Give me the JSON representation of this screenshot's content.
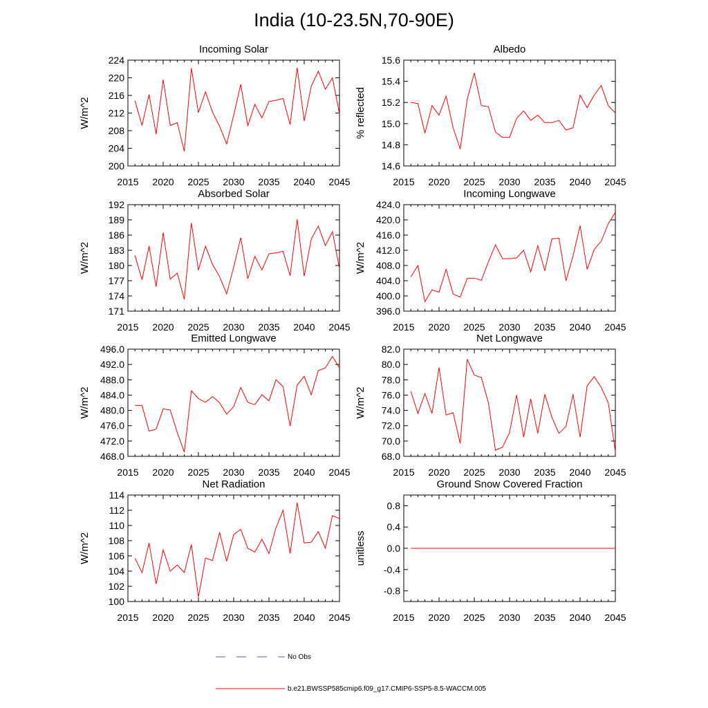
{
  "figure": {
    "title": "India (10-23.5N,70-90E)",
    "legend": [
      {
        "label": "No Obs",
        "style": "dashed",
        "color": "#5a5ab4"
      },
      {
        "label": "b.e21.BWSSP585cmip6.f09_g17.CMIP6-SSP5-8.5-WACCM.005",
        "style": "solid",
        "color": "#ff0000"
      }
    ]
  },
  "chart_data": [
    {
      "type": "line",
      "title": "Incoming Solar",
      "xlabel": "",
      "ylabel": "W/m^2",
      "xlim": [
        2015,
        2045
      ],
      "ylim": [
        200,
        224
      ],
      "xticks": [
        "2015",
        "2020",
        "2025",
        "2030",
        "2035",
        "2040",
        "2045"
      ],
      "yticks": [
        "200",
        "204",
        "208",
        "212",
        "216",
        "220",
        "224"
      ],
      "series": [
        {
          "name": "b.e21.BWSSP585cmip6.f09_g17.CMIP6-SSP5-8.5-WACCM.005",
          "color": "#ff0000",
          "x": [
            2016,
            2017,
            2018,
            2019,
            2020,
            2021,
            2022,
            2023,
            2024,
            2025,
            2026,
            2027,
            2028,
            2029,
            2030,
            2031,
            2032,
            2033,
            2034,
            2035,
            2036,
            2037,
            2038,
            2039,
            2040,
            2041,
            2042,
            2043,
            2044,
            2045
          ],
          "y": [
            214.8,
            209.2,
            216.2,
            207.2,
            219.6,
            209.2,
            209.8,
            203.3,
            222.2,
            212.1,
            216.8,
            212.2,
            209.0,
            205.0,
            211.5,
            218.5,
            209.1,
            214.0,
            210.9,
            214.6,
            214.9,
            215.3,
            209.4,
            222.3,
            210.2,
            218.1,
            221.5,
            217.4,
            220.0,
            211.8
          ]
        }
      ]
    },
    {
      "type": "line",
      "title": "Albedo",
      "xlabel": "",
      "ylabel": "% reflected",
      "xlim": [
        2015,
        2045
      ],
      "ylim": [
        14.6,
        15.6
      ],
      "xticks": [
        "2015",
        "2020",
        "2025",
        "2030",
        "2035",
        "2040",
        "2045"
      ],
      "yticks": [
        "14.6",
        "14.8",
        "15.0",
        "15.2",
        "15.4",
        "15.6"
      ],
      "series": [
        {
          "name": "b.e21.BWSSP585cmip6.f09_g17.CMIP6-SSP5-8.5-WACCM.005",
          "color": "#ff0000",
          "x": [
            2016,
            2017,
            2018,
            2019,
            2020,
            2021,
            2022,
            2023,
            2024,
            2025,
            2026,
            2027,
            2028,
            2029,
            2030,
            2031,
            2032,
            2033,
            2034,
            2035,
            2036,
            2037,
            2038,
            2039,
            2040,
            2041,
            2042,
            2043,
            2044,
            2045
          ],
          "y": [
            15.2,
            15.19,
            14.91,
            15.17,
            15.08,
            15.26,
            14.96,
            14.76,
            15.23,
            15.48,
            15.17,
            15.16,
            14.92,
            14.87,
            14.87,
            15.05,
            15.12,
            15.03,
            15.08,
            15.01,
            15.01,
            15.03,
            14.94,
            14.96,
            15.27,
            15.15,
            15.27,
            15.36,
            15.17,
            15.1
          ]
        }
      ]
    },
    {
      "type": "line",
      "title": "Absorbed Solar",
      "xlabel": "",
      "ylabel": "W/m^2",
      "xlim": [
        2015,
        2045
      ],
      "ylim": [
        171,
        192
      ],
      "xticks": [
        "2015",
        "2020",
        "2025",
        "2030",
        "2035",
        "2040",
        "2045"
      ],
      "yticks": [
        "171",
        "174",
        "177",
        "180",
        "183",
        "186",
        "189",
        "192"
      ],
      "series": [
        {
          "name": "b.e21.BWSSP585cmip6.f09_g17.CMIP6-SSP5-8.5-WACCM.005",
          "color": "#ff0000",
          "x": [
            2016,
            2017,
            2018,
            2019,
            2020,
            2021,
            2022,
            2023,
            2024,
            2025,
            2026,
            2027,
            2028,
            2029,
            2030,
            2031,
            2032,
            2033,
            2034,
            2035,
            2036,
            2037,
            2038,
            2039,
            2040,
            2041,
            2042,
            2043,
            2044,
            2045
          ],
          "y": [
            182.0,
            177.2,
            183.8,
            175.8,
            186.5,
            177.3,
            178.5,
            173.3,
            188.4,
            179.1,
            183.8,
            180.2,
            177.8,
            174.4,
            179.7,
            185.5,
            177.4,
            181.8,
            179.1,
            182.3,
            182.5,
            182.8,
            178.0,
            189.1,
            177.9,
            185.2,
            187.8,
            183.9,
            186.7,
            179.4
          ]
        }
      ]
    },
    {
      "type": "line",
      "title": "Incoming Longwave",
      "xlabel": "",
      "ylabel": "W/m^2",
      "xlim": [
        2015,
        2045
      ],
      "ylim": [
        396.0,
        424.0
      ],
      "xticks": [
        "2015",
        "2020",
        "2025",
        "2030",
        "2035",
        "2040",
        "2045"
      ],
      "yticks": [
        "396.0",
        "400.0",
        "404.0",
        "408.0",
        "412.0",
        "416.0",
        "420.0",
        "424.0"
      ],
      "series": [
        {
          "name": "b.e21.BWSSP585cmip6.f09_g17.CMIP6-SSP5-8.5-WACCM.005",
          "color": "#ff0000",
          "x": [
            2016,
            2017,
            2018,
            2019,
            2020,
            2021,
            2022,
            2023,
            2024,
            2025,
            2026,
            2027,
            2028,
            2029,
            2030,
            2031,
            2032,
            2033,
            2034,
            2035,
            2036,
            2037,
            2038,
            2039,
            2040,
            2041,
            2042,
            2043,
            2044,
            2045
          ],
          "y": [
            405.0,
            408.0,
            398.5,
            401.6,
            401.0,
            407.0,
            400.5,
            399.7,
            404.6,
            404.7,
            404.1,
            409.0,
            413.4,
            409.8,
            409.8,
            410.0,
            412.0,
            406.3,
            413.2,
            406.6,
            415.0,
            415.2,
            404.0,
            410.5,
            418.5,
            407.0,
            412.2,
            414.4,
            419.0,
            422.0
          ]
        }
      ]
    },
    {
      "type": "line",
      "title": "Emitted Longwave",
      "xlabel": "",
      "ylabel": "W/m^2",
      "xlim": [
        2015,
        2045
      ],
      "ylim": [
        468.0,
        496.0
      ],
      "xticks": [
        "2015",
        "2020",
        "2025",
        "2030",
        "2035",
        "2040",
        "2045"
      ],
      "yticks": [
        "468.0",
        "472.0",
        "476.0",
        "480.0",
        "484.0",
        "488.0",
        "492.0",
        "496.0"
      ],
      "series": [
        {
          "name": "b.e21.BWSSP585cmip6.f09_g17.CMIP6-SSP5-8.5-WACCM.005",
          "color": "#ff0000",
          "x": [
            2016,
            2017,
            2018,
            2019,
            2020,
            2021,
            2022,
            2023,
            2024,
            2025,
            2026,
            2027,
            2028,
            2029,
            2030,
            2031,
            2032,
            2033,
            2034,
            2035,
            2036,
            2037,
            2038,
            2039,
            2040,
            2041,
            2042,
            2043,
            2044,
            2045
          ],
          "y": [
            481.3,
            481.3,
            474.6,
            475.1,
            480.4,
            480.1,
            474.2,
            469.1,
            485.1,
            483.1,
            482.1,
            483.6,
            482.0,
            479.0,
            481.0,
            486.0,
            482.1,
            481.5,
            484.1,
            482.5,
            488.0,
            486.2,
            475.9,
            486.6,
            488.9,
            484.1,
            490.4,
            491.1,
            494.1,
            491.1
          ]
        }
      ]
    },
    {
      "type": "line",
      "title": "Net Longwave",
      "xlabel": "",
      "ylabel": "W/m^2",
      "xlim": [
        2015,
        2045
      ],
      "ylim": [
        68.0,
        82.0
      ],
      "xticks": [
        "2015",
        "2020",
        "2025",
        "2030",
        "2035",
        "2040",
        "2045"
      ],
      "yticks": [
        "68.0",
        "70.0",
        "72.0",
        "74.0",
        "76.0",
        "78.0",
        "80.0",
        "82.0"
      ],
      "series": [
        {
          "name": "b.e21.BWSSP585cmip6.f09_g17.CMIP6-SSP5-8.5-WACCM.005",
          "color": "#ff0000",
          "x": [
            2016,
            2017,
            2018,
            2019,
            2020,
            2021,
            2022,
            2023,
            2024,
            2025,
            2026,
            2027,
            2028,
            2029,
            2030,
            2031,
            2032,
            2033,
            2034,
            2035,
            2036,
            2037,
            2038,
            2039,
            2040,
            2041,
            2042,
            2043,
            2044,
            2045
          ],
          "y": [
            76.5,
            73.6,
            76.2,
            73.6,
            79.6,
            73.4,
            73.7,
            69.7,
            80.7,
            78.6,
            78.3,
            75.0,
            68.8,
            69.2,
            71.1,
            76.0,
            70.5,
            75.5,
            71.0,
            76.1,
            73.1,
            71.0,
            71.9,
            76.1,
            70.5,
            77.2,
            78.4,
            77.0,
            75.0,
            68.6
          ]
        }
      ]
    },
    {
      "type": "line",
      "title": "Net Radiation",
      "xlabel": "",
      "ylabel": "W/m^2",
      "xlim": [
        2015,
        2045
      ],
      "ylim": [
        100,
        114
      ],
      "xticks": [
        "2015",
        "2020",
        "2025",
        "2030",
        "2035",
        "2040",
        "2045"
      ],
      "yticks": [
        "100",
        "102",
        "104",
        "106",
        "108",
        "110",
        "112",
        "114"
      ],
      "series": [
        {
          "name": "b.e21.BWSSP585cmip6.f09_g17.CMIP6-SSP5-8.5-WACCM.005",
          "color": "#ff0000",
          "x": [
            2016,
            2017,
            2018,
            2019,
            2020,
            2021,
            2022,
            2023,
            2024,
            2025,
            2026,
            2027,
            2028,
            2029,
            2030,
            2031,
            2032,
            2033,
            2034,
            2035,
            2036,
            2037,
            2038,
            2039,
            2040,
            2041,
            2042,
            2043,
            2044,
            2045
          ],
          "y": [
            105.7,
            103.8,
            107.7,
            102.3,
            106.8,
            104.0,
            104.8,
            103.8,
            107.5,
            100.6,
            105.7,
            105.4,
            109.1,
            105.3,
            108.8,
            109.5,
            107.0,
            106.5,
            108.2,
            106.3,
            109.7,
            112.0,
            106.3,
            113.0,
            107.7,
            107.8,
            109.2,
            107.0,
            111.3,
            110.9
          ]
        }
      ]
    },
    {
      "type": "line",
      "title": "Ground Snow Covered Fraction",
      "xlabel": "",
      "ylabel": "unitless",
      "xlim": [
        2015,
        2045
      ],
      "ylim": [
        -1.0,
        1.0
      ],
      "xticks": [
        "2015",
        "2020",
        "2025",
        "2030",
        "2035",
        "2040",
        "2045"
      ],
      "yticks": [
        "-0.8",
        "-0.4",
        "0.0",
        "0.4",
        "0.8"
      ],
      "series": [
        {
          "name": "b.e21.BWSSP585cmip6.f09_g17.CMIP6-SSP5-8.5-WACCM.005",
          "color": "#ff0000",
          "x": [
            2016,
            2045
          ],
          "y": [
            0.0,
            0.0
          ]
        }
      ]
    }
  ]
}
